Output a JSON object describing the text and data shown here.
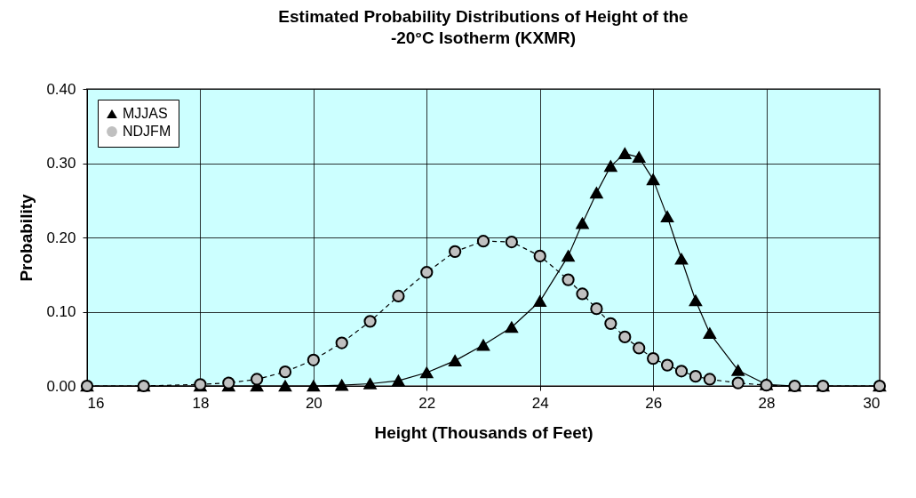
{
  "chart_data": {
    "type": "line",
    "title": "Estimated Probability Distributions of Height of the -20°C Isotherm (KXMR)",
    "xlabel": "Height (Thousands of Feet)",
    "ylabel": "Probability",
    "series": [
      {
        "name": "MJJAS",
        "color": "#000000",
        "marker": "triangle",
        "line_style": "solid",
        "x": [
          16,
          17,
          18,
          18.5,
          19,
          19.5,
          20,
          20.5,
          21,
          21.5,
          22,
          22.5,
          23,
          23.5,
          24,
          24.5,
          24.75,
          25,
          25.25,
          25.5,
          25.75,
          26,
          26.25,
          26.5,
          26.75,
          27,
          27.5,
          28,
          28.5,
          29,
          30
        ],
        "values": [
          0,
          0,
          0,
          0,
          0,
          0,
          0,
          0.001,
          0.003,
          0.007,
          0.018,
          0.034,
          0.055,
          0.079,
          0.114,
          0.175,
          0.219,
          0.26,
          0.296,
          0.313,
          0.308,
          0.278,
          0.228,
          0.171,
          0.115,
          0.071,
          0.021,
          0.002,
          0,
          0,
          0
        ]
      },
      {
        "name": "NDJFM",
        "color": "#c0c0c0",
        "marker": "circle",
        "line_style": "dashed",
        "x": [
          16,
          17,
          18,
          18.5,
          19,
          19.5,
          20,
          20.5,
          21,
          21.5,
          22,
          22.5,
          23,
          23.5,
          24,
          24.5,
          24.75,
          25,
          25.25,
          25.5,
          25.75,
          26,
          26.25,
          26.5,
          26.75,
          27,
          27.5,
          28,
          28.5,
          29,
          30
        ],
        "values": [
          0,
          0,
          0.002,
          0.004,
          0.009,
          0.019,
          0.035,
          0.058,
          0.087,
          0.121,
          0.153,
          0.181,
          0.195,
          0.194,
          0.175,
          0.143,
          0.124,
          0.104,
          0.084,
          0.066,
          0.051,
          0.037,
          0.028,
          0.02,
          0.013,
          0.009,
          0.004,
          0.001,
          0,
          0,
          0
        ]
      }
    ],
    "xlim": [
      16,
      30
    ],
    "xticks": [
      16,
      18,
      20,
      22,
      24,
      26,
      28,
      30
    ],
    "ylim": [
      0,
      0.4
    ],
    "yticks": [
      {
        "value": 0,
        "label": "0.00"
      },
      {
        "value": 0.1,
        "label": "0.10"
      },
      {
        "value": 0.2,
        "label": "0.20"
      },
      {
        "value": 0.3,
        "label": "0.30"
      },
      {
        "value": 0.4,
        "label": "0.40"
      }
    ],
    "grid": true,
    "legend": "top left"
  }
}
